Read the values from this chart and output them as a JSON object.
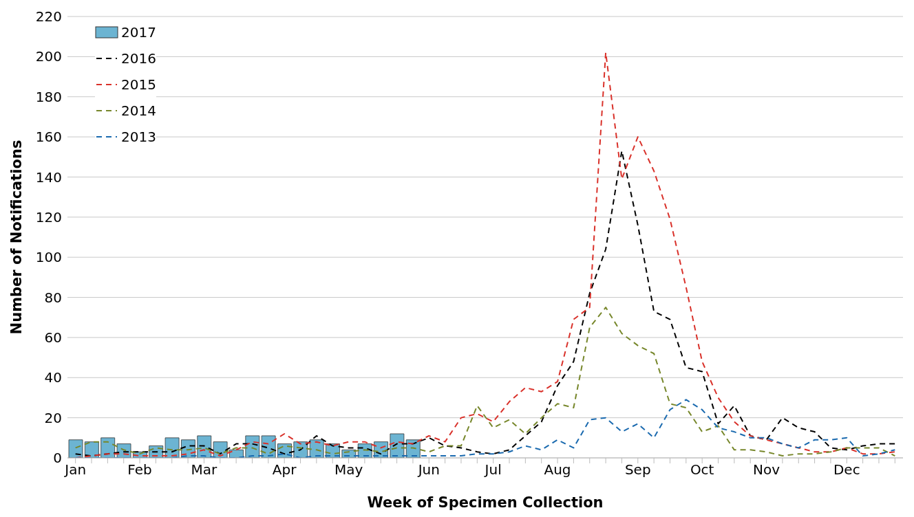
{
  "chart_data": {
    "type": "line",
    "xlabel": "Week of Specimen Collection",
    "ylabel": "Number of Notifications",
    "categories": [
      "Jan",
      null,
      null,
      null,
      "Feb",
      null,
      null,
      null,
      "Mar",
      null,
      null,
      null,
      null,
      "Apr",
      null,
      null,
      null,
      "May",
      null,
      null,
      null,
      null,
      "Jun",
      null,
      null,
      null,
      "Jul",
      null,
      null,
      null,
      "Aug",
      null,
      null,
      null,
      null,
      "Sep",
      null,
      null,
      null,
      "Oct",
      null,
      null,
      null,
      "Nov",
      null,
      null,
      null,
      null,
      "Dec",
      null,
      null,
      null
    ],
    "series": [
      {
        "name": "2017",
        "type": "bar",
        "color": "#6cb4d2",
        "values": [
          9,
          8,
          10,
          7,
          3,
          6,
          10,
          9,
          11,
          8,
          4,
          11,
          11,
          7,
          8,
          9,
          7,
          4,
          7,
          8,
          12,
          9,
          null,
          null,
          null,
          null,
          null,
          null,
          null,
          null,
          null,
          null,
          null,
          null,
          null,
          null,
          null,
          null,
          null,
          null,
          null,
          null,
          null,
          null,
          null,
          null,
          null,
          null,
          null,
          null,
          null,
          null
        ]
      },
      {
        "name": "2016",
        "color": "#000000",
        "values": [
          2,
          1,
          2,
          3,
          3,
          3,
          3,
          6,
          6,
          2,
          7,
          7,
          5,
          2,
          4,
          11,
          6,
          5,
          5,
          2,
          7,
          7,
          10,
          6,
          5,
          3,
          2,
          4,
          11,
          18,
          36,
          48,
          82,
          104,
          153,
          116,
          73,
          69,
          45,
          43,
          17,
          26,
          11,
          9,
          20,
          15,
          13,
          5,
          4,
          6,
          7,
          7
        ]
      },
      {
        "name": "2015",
        "color": "#d9312a",
        "values": [
          0,
          1,
          2,
          2,
          1,
          1,
          1,
          2,
          4,
          1,
          4,
          8,
          7,
          12,
          7,
          8,
          6,
          8,
          8,
          5,
          8,
          7,
          11,
          8,
          20,
          22,
          18,
          28,
          35,
          33,
          38,
          69,
          75,
          202,
          139,
          160,
          143,
          119,
          85,
          48,
          30,
          18,
          11,
          9,
          7,
          5,
          3,
          3,
          5,
          2,
          2,
          3
        ]
      },
      {
        "name": "2014",
        "color": "#77872b",
        "values": [
          5,
          8,
          8,
          4,
          2,
          5,
          4,
          4,
          5,
          2,
          5,
          5,
          2,
          6,
          5,
          4,
          2,
          3,
          4,
          3,
          5,
          5,
          3,
          6,
          6,
          26,
          15,
          19,
          12,
          20,
          27,
          25,
          65,
          75,
          62,
          56,
          52,
          27,
          25,
          13,
          16,
          4,
          4,
          3,
          1,
          2,
          2,
          3,
          5,
          5,
          5,
          1
        ]
      },
      {
        "name": "2013",
        "color": "#1a6aaf",
        "values": [
          0,
          0,
          0,
          0,
          0,
          0,
          0,
          1,
          1,
          0,
          0,
          1,
          1,
          2,
          0,
          1,
          1,
          1,
          1,
          1,
          1,
          1,
          1,
          1,
          1,
          2,
          2,
          3,
          6,
          4,
          9,
          5,
          19,
          20,
          13,
          17,
          10,
          24,
          29,
          24,
          15,
          13,
          10,
          10,
          7,
          5,
          9,
          9,
          10,
          1,
          2,
          4
        ]
      }
    ],
    "ylim": [
      0,
      220
    ],
    "yticks": [
      0,
      20,
      40,
      60,
      80,
      100,
      120,
      140,
      160,
      180,
      200,
      220
    ],
    "grid": "y",
    "legend": "top left",
    "line_style": "dashed",
    "marker": "none"
  }
}
